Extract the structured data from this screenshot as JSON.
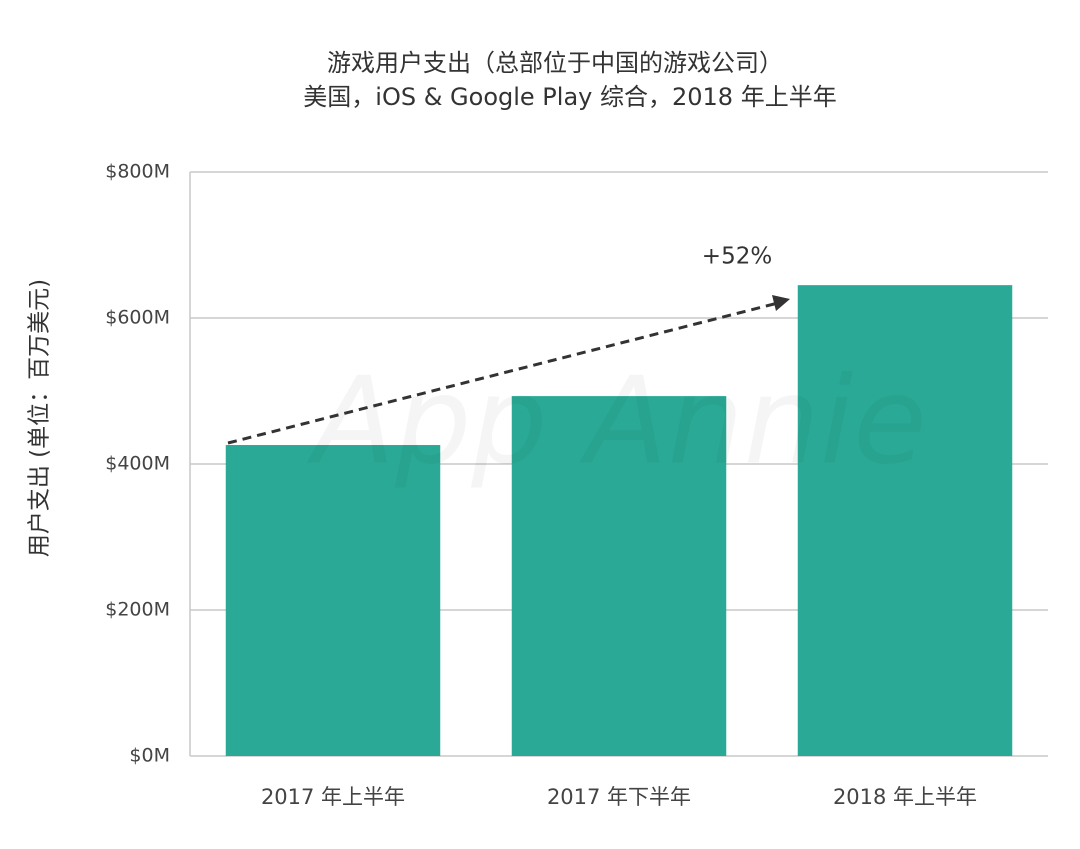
{
  "chart_data": {
    "type": "bar",
    "title": "游戏用户支出（总部位于中国的游戏公司）",
    "subtitle": "美国，iOS & Google Play 综合，2018 年上半年",
    "y_label": "用户支出 (单位：百万美元)",
    "annotation": "+52%",
    "watermark": "App Annie",
    "categories": [
      "2017 年上半年",
      "2017 年下半年",
      "2018 年上半年"
    ],
    "values": [
      426,
      493,
      645
    ],
    "color": "#2aaa96",
    "ylim": [
      0,
      800
    ],
    "yticks": [
      {
        "value": 0,
        "label": "$0M"
      },
      {
        "value": 200,
        "label": "$200M"
      },
      {
        "value": 400,
        "label": "$400M"
      },
      {
        "value": 600,
        "label": "$600M"
      },
      {
        "value": 800,
        "label": "$800M"
      }
    ],
    "grid": true
  }
}
